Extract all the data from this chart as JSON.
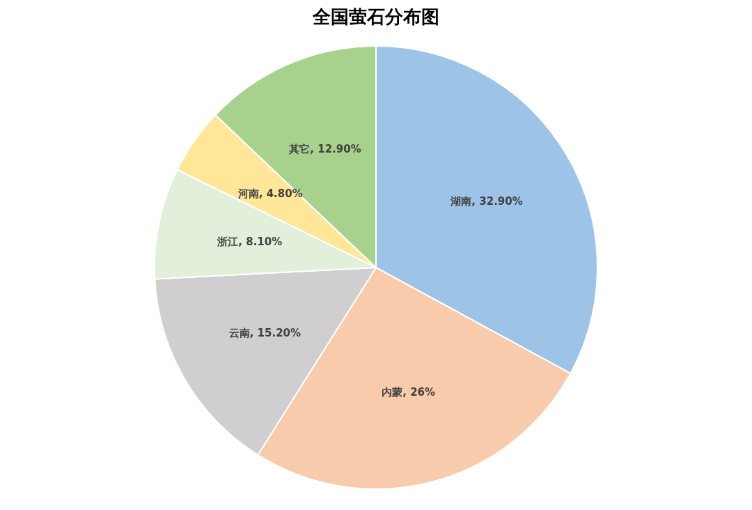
{
  "chart_data": {
    "type": "pie",
    "title": "全国萤石分布图",
    "categories": [
      "湖南",
      "内蒙",
      "云南",
      "浙江",
      "河南",
      "其它"
    ],
    "values": [
      32.9,
      26,
      15.2,
      8.1,
      4.8,
      12.9
    ],
    "value_labels": [
      "32.90%",
      "26%",
      "15.20%",
      "8.10%",
      "4.80%",
      "12.90%"
    ],
    "colors": [
      "#9dc3e6",
      "#f8cbad",
      "#d0cece",
      "#e2efda",
      "#ffe699",
      "#a9d18e"
    ],
    "legend": false
  }
}
